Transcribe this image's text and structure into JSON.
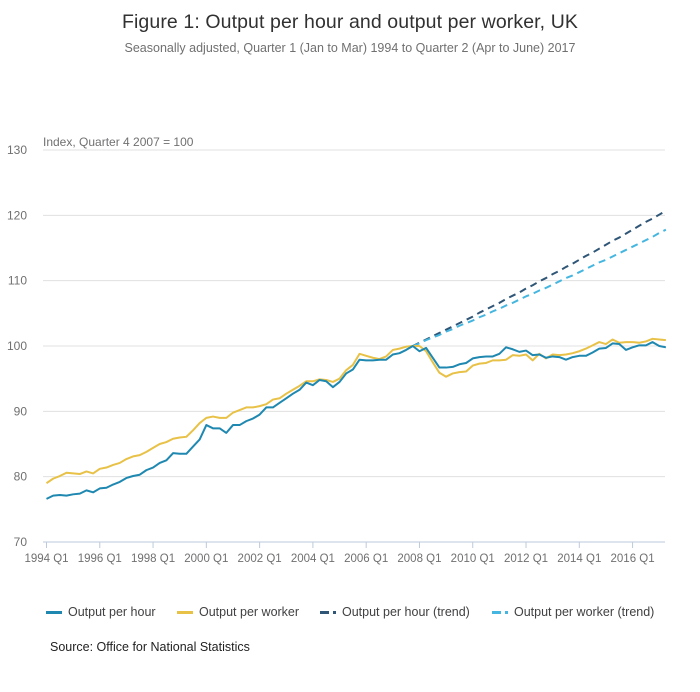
{
  "colors": {
    "hour": "#206095",
    "hour_line": "#1f88b0",
    "worker": "#e8c147",
    "hour_trend": "#2f5677",
    "worker_trend": "#45b6e0",
    "grid": "#e0e0e0",
    "axis": "#bccadb",
    "tick_text": "#707071"
  },
  "legend": [
    {
      "key": "hour",
      "label": "Output per hour",
      "style": "solid"
    },
    {
      "key": "worker",
      "label": "Output per worker",
      "style": "solid"
    },
    {
      "key": "hour_trend",
      "label": "Output per hour (trend)",
      "style": "dashed"
    },
    {
      "key": "worker_trend",
      "label": "Output per worker (trend)",
      "style": "dashed"
    }
  ],
  "source": "Source: Office for National Statistics",
  "chart_data": {
    "type": "line",
    "title": "Figure 1: Output per hour and output per worker, UK",
    "subtitle": "Seasonally adjusted, Quarter 1 (Jan to Mar) 1994 to Quarter 2 (Apr to June) 2017",
    "ylabel": "Index, Quarter 4 2007 = 100",
    "xlabel": "",
    "ylim": [
      70,
      130
    ],
    "yticks": [
      70,
      80,
      90,
      100,
      110,
      120,
      130
    ],
    "xticks": [
      "1994 Q1",
      "1996 Q1",
      "1998 Q1",
      "2000 Q1",
      "2002 Q1",
      "2004 Q1",
      "2006 Q1",
      "2008 Q1",
      "2010 Q1",
      "2012 Q1",
      "2014 Q1",
      "2016 Q1"
    ],
    "x_start": "1994 Q1",
    "x_end": "2017 Q2",
    "grid": true,
    "legend_position": "bottom",
    "series": [
      {
        "name": "Output per hour",
        "key": "hour",
        "start": "1994 Q1",
        "values": [
          76.6,
          77.1,
          77.2,
          77.1,
          77.3,
          77.4,
          77.9,
          77.6,
          78.2,
          78.3,
          78.8,
          79.2,
          79.8,
          80.1,
          80.3,
          81.0,
          81.4,
          82.1,
          82.5,
          83.6,
          83.5,
          83.5,
          84.6,
          85.7,
          87.9,
          87.4,
          87.4,
          86.7,
          87.9,
          87.9,
          88.5,
          88.9,
          89.5,
          90.6,
          90.6,
          91.3,
          92.0,
          92.7,
          93.3,
          94.4,
          94.0,
          94.8,
          94.6,
          93.7,
          94.5,
          95.8,
          96.4,
          97.9,
          97.8,
          97.8,
          97.9,
          97.9,
          98.7,
          98.9,
          99.4,
          100.0,
          99.2,
          99.7,
          98.2,
          96.7,
          96.7,
          96.8,
          97.2,
          97.4,
          98.1,
          98.3,
          98.4,
          98.4,
          98.8,
          99.8,
          99.5,
          99.1,
          99.3,
          98.6,
          98.7,
          98.2,
          98.4,
          98.3,
          97.9,
          98.3,
          98.5,
          98.5,
          99.0,
          99.6,
          99.7,
          100.4,
          100.3,
          99.4,
          99.8,
          100.1,
          100.1,
          100.6,
          100.0,
          99.8
        ]
      },
      {
        "name": "Output per worker",
        "key": "worker",
        "start": "1994 Q1",
        "values": [
          79.0,
          79.7,
          80.1,
          80.6,
          80.5,
          80.4,
          80.8,
          80.5,
          81.2,
          81.4,
          81.8,
          82.1,
          82.7,
          83.1,
          83.3,
          83.8,
          84.4,
          85.0,
          85.3,
          85.8,
          86.0,
          86.1,
          87.1,
          88.2,
          89.0,
          89.2,
          89.0,
          89.0,
          89.8,
          90.2,
          90.6,
          90.6,
          90.8,
          91.1,
          91.8,
          92.0,
          92.7,
          93.3,
          93.9,
          94.6,
          94.6,
          94.9,
          94.8,
          94.5,
          95.0,
          96.3,
          97.1,
          98.8,
          98.5,
          98.2,
          98.0,
          98.4,
          99.4,
          99.6,
          99.9,
          100.0,
          100.0,
          99.2,
          97.5,
          95.9,
          95.3,
          95.8,
          96.0,
          96.1,
          97.0,
          97.3,
          97.4,
          97.8,
          97.8,
          97.9,
          98.6,
          98.5,
          98.7,
          97.8,
          98.8,
          98.1,
          98.7,
          98.6,
          98.7,
          98.9,
          99.2,
          99.6,
          100.1,
          100.6,
          100.3,
          101.0,
          100.5,
          100.6,
          100.6,
          100.5,
          100.7,
          101.1,
          101.0,
          100.9
        ]
      },
      {
        "name": "Output per hour (trend)",
        "key": "hour_trend",
        "start": "2007 Q4",
        "values": [
          100.0,
          100.5,
          101.0,
          101.5,
          102.0,
          102.5,
          103.0,
          103.5,
          104.0,
          104.5,
          105.1,
          105.6,
          106.1,
          106.6,
          107.2,
          107.7,
          108.2,
          108.8,
          109.3,
          109.9,
          110.4,
          111.0,
          111.5,
          112.1,
          112.6,
          113.2,
          113.8,
          114.3,
          114.9,
          115.5,
          116.1,
          116.6,
          117.2,
          117.8,
          118.4,
          119.0,
          119.5,
          120.1,
          120.7
        ]
      },
      {
        "name": "Output per worker (trend)",
        "key": "worker_trend",
        "start": "2007 Q4",
        "values": [
          100.0,
          100.4,
          100.9,
          101.3,
          101.7,
          102.2,
          102.6,
          103.1,
          103.5,
          103.9,
          104.4,
          104.8,
          105.3,
          105.7,
          106.2,
          106.6,
          107.1,
          107.6,
          108.0,
          108.5,
          108.9,
          109.4,
          109.9,
          110.4,
          110.8,
          111.3,
          111.8,
          112.3,
          112.8,
          113.2,
          113.7,
          114.2,
          114.7,
          115.2,
          115.7,
          116.2,
          116.7,
          117.3,
          117.8
        ]
      }
    ]
  }
}
